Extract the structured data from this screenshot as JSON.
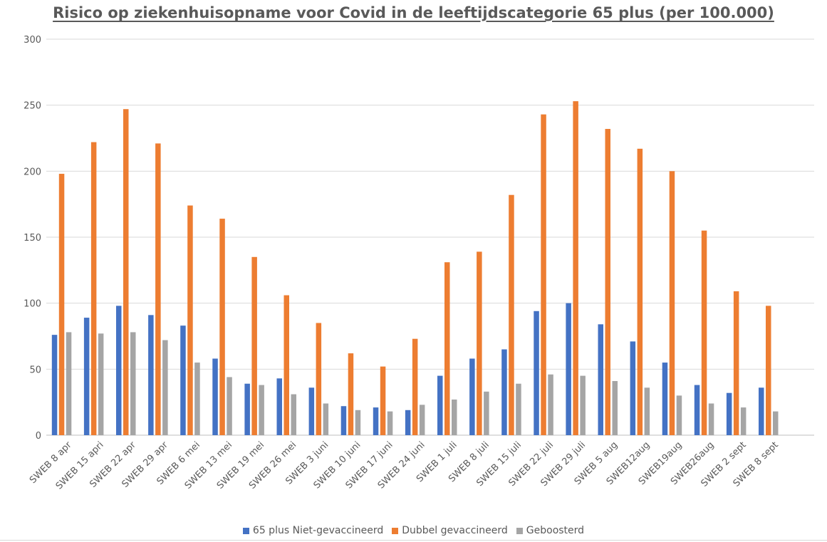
{
  "chart_data": {
    "type": "bar",
    "title": "Risico op ziekenhuisopname voor Covid in de leeftijdscategorie 65 plus (per 100.000)",
    "ylim": [
      0,
      300
    ],
    "yticks": [
      0,
      50,
      100,
      150,
      200,
      250,
      300
    ],
    "grid": true,
    "legend_position": "bottom",
    "categories": [
      "SWEB 8 apr",
      "SWEB 15 apri",
      "SWEB 22 apr",
      "SWEB 29 apr",
      "SWEB 6 mei",
      "SWEB 13 mei",
      "SWEB 19 mei",
      "SWEB 26 mei",
      "SWEB 3 juni",
      "SWEB 10 juni",
      "SWEB 17 juni",
      "SWEB 24 juni",
      "SWEB 1 juli",
      "SWEB 8 juli",
      "SWEB 15 juli",
      "SWEB 22 juli",
      "SWEB 29 juli",
      "SWEB 5 aug",
      "SWEB12aug",
      "SWEB19aug",
      "SWEB26aug",
      "SWEB 2 sept",
      "SWEB 8 sept"
    ],
    "series": [
      {
        "name": "65 plus Niet-gevaccineerd",
        "color": "#4472C4",
        "values": [
          76,
          89,
          98,
          91,
          83,
          58,
          39,
          43,
          36,
          22,
          21,
          19,
          45,
          58,
          65,
          94,
          100,
          84,
          71,
          55,
          38,
          32,
          36
        ]
      },
      {
        "name": "Dubbel gevaccineerd",
        "color": "#ED7D31",
        "values": [
          198,
          222,
          247,
          221,
          174,
          164,
          135,
          106,
          85,
          62,
          52,
          73,
          131,
          139,
          182,
          243,
          253,
          232,
          217,
          200,
          155,
          109,
          98
        ]
      },
      {
        "name": "Geboosterd",
        "color": "#A5A5A5",
        "values": [
          78,
          77,
          78,
          72,
          55,
          44,
          38,
          31,
          24,
          19,
          18,
          23,
          27,
          33,
          39,
          46,
          45,
          41,
          36,
          30,
          24,
          21,
          18
        ]
      }
    ],
    "colors": {
      "grid": "#d9d9d9",
      "axis": "#bfbfbf",
      "text": "#595959"
    }
  }
}
